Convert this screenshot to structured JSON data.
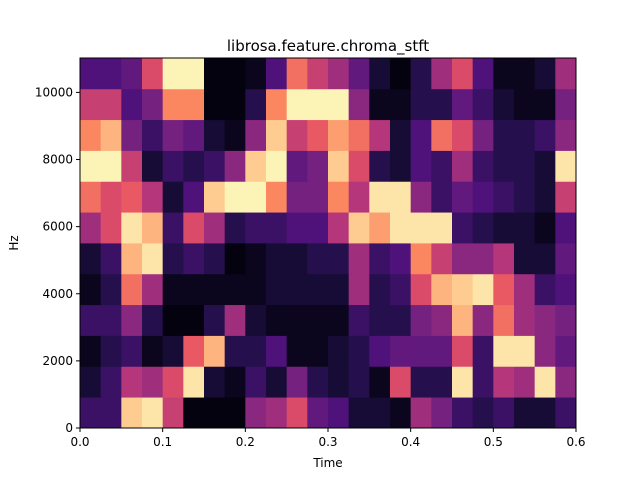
{
  "chart_data": {
    "type": "heatmap",
    "title": "librosa.feature.chroma_stft",
    "xlabel": "Time",
    "ylabel": "Hz",
    "xlim": [
      0,
      0.6
    ],
    "ylim": [
      0,
      11025
    ],
    "x_ticks": [
      {
        "value": 0,
        "label": "0.0"
      },
      {
        "value": 0.1,
        "label": "0.1"
      },
      {
        "value": 0.2,
        "label": "0.2"
      },
      {
        "value": 0.3,
        "label": "0.3"
      },
      {
        "value": 0.4,
        "label": "0.4"
      },
      {
        "value": 0.5,
        "label": "0.5"
      },
      {
        "value": 0.6,
        "label": "0.6"
      }
    ],
    "y_ticks": [
      {
        "value": 0,
        "label": "0"
      },
      {
        "value": 2000,
        "label": "2000"
      },
      {
        "value": 4000,
        "label": "4000"
      },
      {
        "value": 6000,
        "label": "6000"
      },
      {
        "value": 8000,
        "label": "8000"
      },
      {
        "value": 10000,
        "label": "10000"
      }
    ],
    "n_time_frames": 24,
    "n_freq_bins": 12,
    "colormap": "magma",
    "values": [
      [
        0.2,
        0.2,
        0.9,
        0.95,
        0.55,
        0.02,
        0.02,
        0.02,
        0.4,
        0.45,
        0.6,
        0.3,
        0.25,
        0.1,
        0.1,
        0.05,
        0.45,
        0.35,
        0.2,
        0.15,
        0.2,
        0.1,
        0.1,
        0.2
      ],
      [
        0.1,
        0.2,
        0.5,
        0.45,
        0.6,
        0.95,
        0.1,
        0.05,
        0.2,
        0.1,
        0.35,
        0.15,
        0.1,
        0.15,
        0.05,
        0.6,
        0.15,
        0.15,
        0.95,
        0.2,
        0.5,
        0.45,
        0.95,
        0.4
      ],
      [
        0.05,
        0.15,
        0.2,
        0.05,
        0.1,
        0.65,
        0.85,
        0.15,
        0.15,
        0.25,
        0.05,
        0.05,
        0.1,
        0.15,
        0.25,
        0.3,
        0.3,
        0.3,
        0.6,
        0.2,
        0.95,
        0.95,
        0.4,
        0.3
      ],
      [
        0.2,
        0.2,
        0.4,
        0.15,
        0.02,
        0.02,
        0.15,
        0.45,
        0.1,
        0.05,
        0.05,
        0.05,
        0.05,
        0.2,
        0.15,
        0.15,
        0.35,
        0.4,
        0.85,
        0.4,
        0.7,
        0.45,
        0.4,
        0.35
      ],
      [
        0.05,
        0.15,
        0.7,
        0.45,
        0.05,
        0.05,
        0.05,
        0.05,
        0.05,
        0.1,
        0.1,
        0.1,
        0.1,
        0.45,
        0.15,
        0.2,
        0.6,
        0.85,
        0.9,
        0.95,
        0.65,
        0.45,
        0.2,
        0.25
      ],
      [
        0.1,
        0.2,
        0.85,
        0.95,
        0.15,
        0.2,
        0.15,
        0.02,
        0.05,
        0.1,
        0.1,
        0.15,
        0.15,
        0.45,
        0.2,
        0.25,
        0.75,
        0.55,
        0.4,
        0.4,
        0.5,
        0.1,
        0.1,
        0.3
      ],
      [
        0.45,
        0.6,
        0.95,
        0.85,
        0.2,
        0.6,
        0.45,
        0.15,
        0.2,
        0.2,
        0.25,
        0.25,
        0.5,
        0.9,
        0.8,
        0.95,
        0.95,
        0.95,
        0.2,
        0.15,
        0.1,
        0.1,
        0.05,
        0.25
      ],
      [
        0.7,
        0.6,
        0.65,
        0.5,
        0.1,
        0.25,
        0.9,
        0.98,
        0.98,
        0.75,
        0.35,
        0.35,
        0.75,
        0.5,
        0.95,
        0.95,
        0.4,
        0.2,
        0.3,
        0.25,
        0.2,
        0.15,
        0.1,
        0.55
      ],
      [
        0.98,
        0.98,
        0.55,
        0.1,
        0.2,
        0.15,
        0.2,
        0.4,
        0.9,
        0.98,
        0.3,
        0.35,
        0.9,
        0.6,
        0.15,
        0.1,
        0.25,
        0.2,
        0.45,
        0.2,
        0.15,
        0.15,
        0.1,
        0.95
      ],
      [
        0.75,
        0.85,
        0.35,
        0.2,
        0.35,
        0.3,
        0.1,
        0.05,
        0.4,
        0.9,
        0.55,
        0.65,
        0.8,
        0.7,
        0.5,
        0.1,
        0.25,
        0.7,
        0.6,
        0.35,
        0.15,
        0.15,
        0.2,
        0.4
      ],
      [
        0.55,
        0.55,
        0.25,
        0.35,
        0.75,
        0.75,
        0.02,
        0.02,
        0.15,
        0.75,
        0.98,
        0.98,
        0.98,
        0.4,
        0.05,
        0.05,
        0.15,
        0.15,
        0.3,
        0.2,
        0.1,
        0.05,
        0.05,
        0.35
      ],
      [
        0.25,
        0.25,
        0.3,
        0.6,
        0.98,
        0.98,
        0.02,
        0.02,
        0.05,
        0.25,
        0.7,
        0.55,
        0.45,
        0.3,
        0.1,
        0.02,
        0.15,
        0.45,
        0.6,
        0.25,
        0.05,
        0.05,
        0.1,
        0.45
      ]
    ]
  }
}
